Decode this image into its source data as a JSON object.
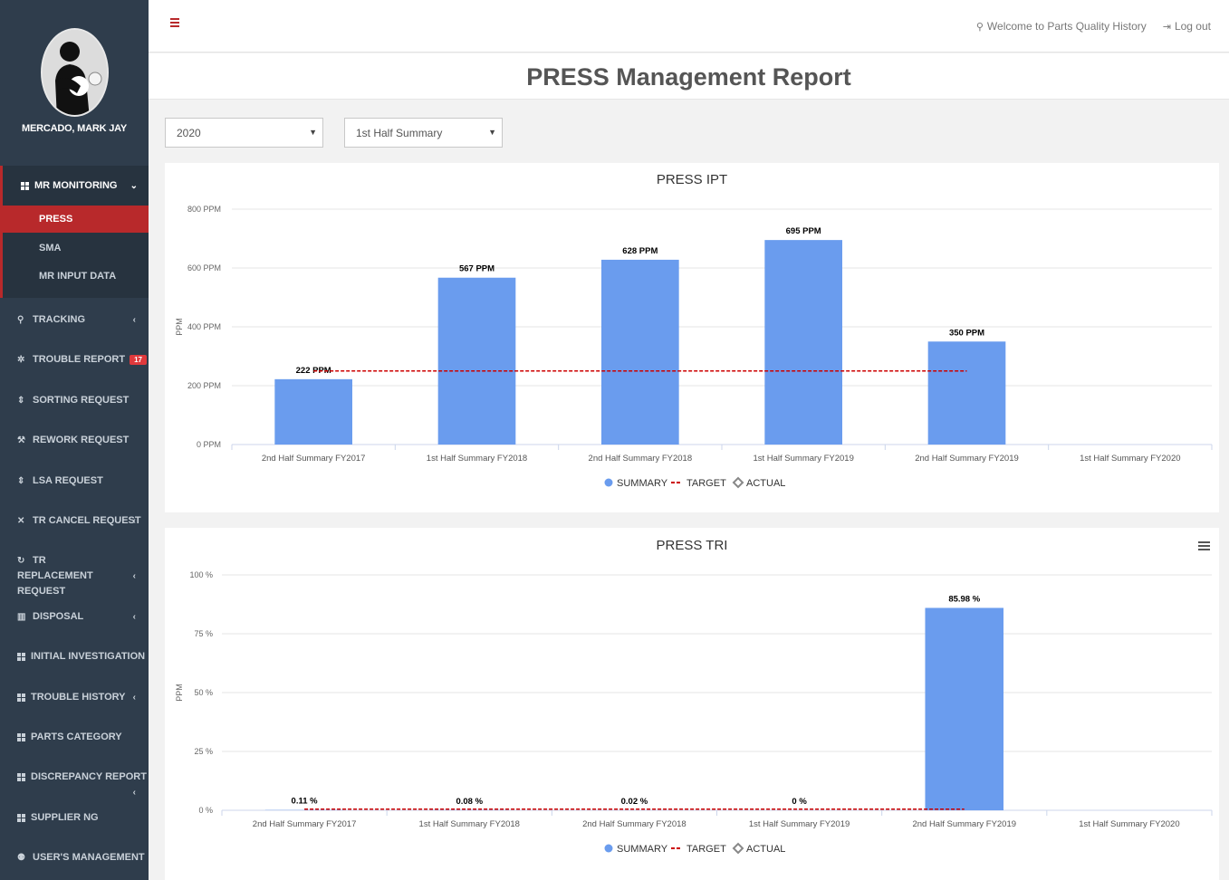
{
  "user": {
    "name": "MERCADO, MARK JAY"
  },
  "header": {
    "welcome": "Welcome to Parts Quality History",
    "logout": "Log out",
    "title": "PRESS Management Report"
  },
  "sidebar": {
    "group": {
      "label": "MR MONITORING",
      "items": [
        {
          "label": "PRESS",
          "active": true
        },
        {
          "label": "SMA"
        },
        {
          "label": "MR INPUT DATA"
        }
      ]
    },
    "items": [
      {
        "label": "TRACKING",
        "icon": "map-marker-icon",
        "arrow": true
      },
      {
        "label": "TROUBLE REPORT",
        "icon": "bug-icon",
        "badge": "17"
      },
      {
        "label": "SORTING REQUEST",
        "icon": "sort-icon"
      },
      {
        "label": "REWORK REQUEST",
        "icon": "gavel-icon"
      },
      {
        "label": "LSA REQUEST",
        "icon": "sort-icon"
      },
      {
        "label": "TR CANCEL REQUEST",
        "icon": "times-icon",
        "arrow": true
      },
      {
        "label": "TR REPLACEMENT REQUEST",
        "icon": "refresh-icon",
        "arrow": true
      },
      {
        "label": "DISPOSAL",
        "icon": "trash-icon",
        "arrow": true
      },
      {
        "label": "INITIAL INVESTIGATION",
        "icon": "grid-icon"
      },
      {
        "label": "TROUBLE HISTORY",
        "icon": "grid-icon",
        "arrow": true
      },
      {
        "label": "PARTS CATEGORY",
        "icon": "grid-icon"
      },
      {
        "label": "DISCREPANCY REPORT",
        "icon": "grid-icon",
        "arrow": true
      },
      {
        "label": "SUPPLIER NG",
        "icon": "grid-icon"
      },
      {
        "label": "USER'S MANAGEMENT",
        "icon": "users-icon"
      }
    ]
  },
  "filters": {
    "year": "2020",
    "period": "1st Half Summary"
  },
  "colors": {
    "bar": "#6a9cee",
    "target": "#cc0000",
    "accent": "#b8292b",
    "sidebar": "#2f3d4c"
  },
  "legend": {
    "summary": "SUMMARY",
    "target": "TARGET",
    "actual": "ACTUAL"
  },
  "chart_data": [
    {
      "type": "bar",
      "title": "PRESS IPT",
      "ylabel": "PPM",
      "ylim": [
        0,
        800
      ],
      "yticks": [
        "0 PPM",
        "200 PPM",
        "400 PPM",
        "600 PPM",
        "800 PPM"
      ],
      "categories": [
        "2nd Half Summary FY2017",
        "1st Half Summary FY2018",
        "2nd Half Summary FY2018",
        "1st Half Summary FY2019",
        "2nd Half Summary FY2019",
        "1st Half Summary FY2020"
      ],
      "series": [
        {
          "name": "SUMMARY",
          "values": [
            222,
            567,
            628,
            695,
            350,
            null
          ],
          "labels": [
            "222 PPM",
            "567 PPM",
            "628 PPM",
            "695 PPM",
            "350 PPM",
            ""
          ]
        },
        {
          "name": "TARGET",
          "values": [
            250,
            250,
            250,
            250,
            250,
            null
          ]
        }
      ],
      "legend": "bottom"
    },
    {
      "type": "bar",
      "title": "PRESS TRI",
      "ylabel": "PPM",
      "ylim": [
        0,
        100
      ],
      "yticks": [
        "0 %",
        "25 %",
        "50 %",
        "75 %",
        "100 %"
      ],
      "categories": [
        "2nd Half Summary FY2017",
        "1st Half Summary FY2018",
        "2nd Half Summary FY2018",
        "1st Half Summary FY2019",
        "2nd Half Summary FY2019",
        "1st Half Summary FY2020"
      ],
      "series": [
        {
          "name": "SUMMARY",
          "values": [
            0.11,
            0.08,
            0.02,
            0,
            85.98,
            null
          ],
          "labels": [
            "0.11 %",
            "0.08 %",
            "0.02 %",
            "0 %",
            "85.98 %",
            ""
          ]
        },
        {
          "name": "TARGET",
          "values": [
            0.5,
            0.5,
            0.5,
            0.5,
            0.5,
            null
          ]
        }
      ],
      "legend": "bottom"
    }
  ]
}
